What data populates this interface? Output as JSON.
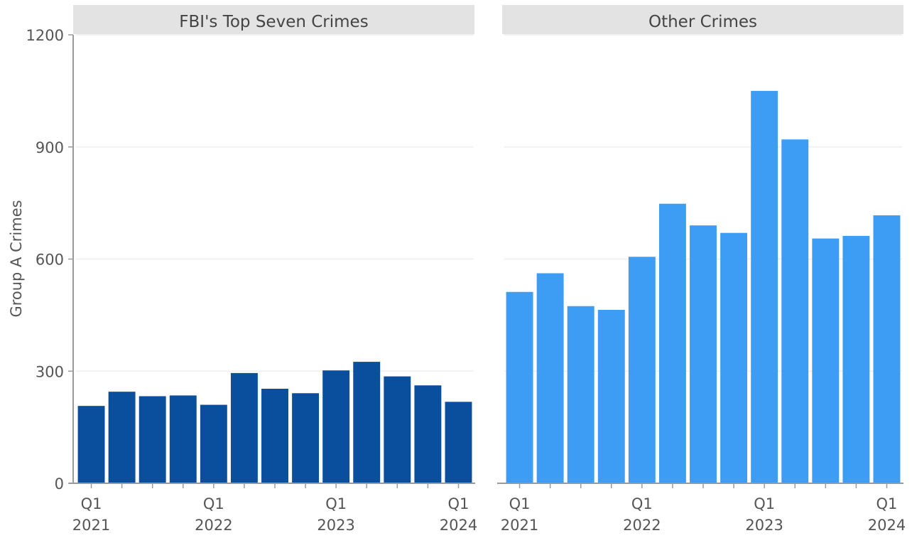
{
  "chart_data": {
    "type": "bar",
    "ylabel": "Group A Crimes",
    "ylim": [
      0,
      1200
    ],
    "yticks": [
      0,
      300,
      600,
      900,
      1200
    ],
    "grid": "horizontal",
    "quarters": [
      "Q1 2021",
      "Q2 2021",
      "Q3 2021",
      "Q4 2021",
      "Q1 2022",
      "Q2 2022",
      "Q3 2022",
      "Q4 2022",
      "Q1 2023",
      "Q2 2023",
      "Q3 2023",
      "Q4 2023",
      "Q1 2024"
    ],
    "x_tick_labels": [
      {
        "index": 0,
        "line1": "Q1",
        "line2": "2021"
      },
      {
        "index": 4,
        "line1": "Q1",
        "line2": "2022"
      },
      {
        "index": 8,
        "line1": "Q1",
        "line2": "2023"
      },
      {
        "index": 12,
        "line1": "Q1",
        "line2": "2024"
      }
    ],
    "panels": [
      {
        "title": "FBI's Top Seven Crimes",
        "color": "#0a4f9e",
        "values": [
          207,
          245,
          233,
          235,
          210,
          295,
          253,
          241,
          302,
          325,
          286,
          262,
          218
        ]
      },
      {
        "title": "Other Crimes",
        "color": "#3d9df5",
        "values": [
          512,
          562,
          474,
          464,
          606,
          748,
          690,
          670,
          1050,
          920,
          655,
          662,
          717
        ]
      }
    ]
  }
}
